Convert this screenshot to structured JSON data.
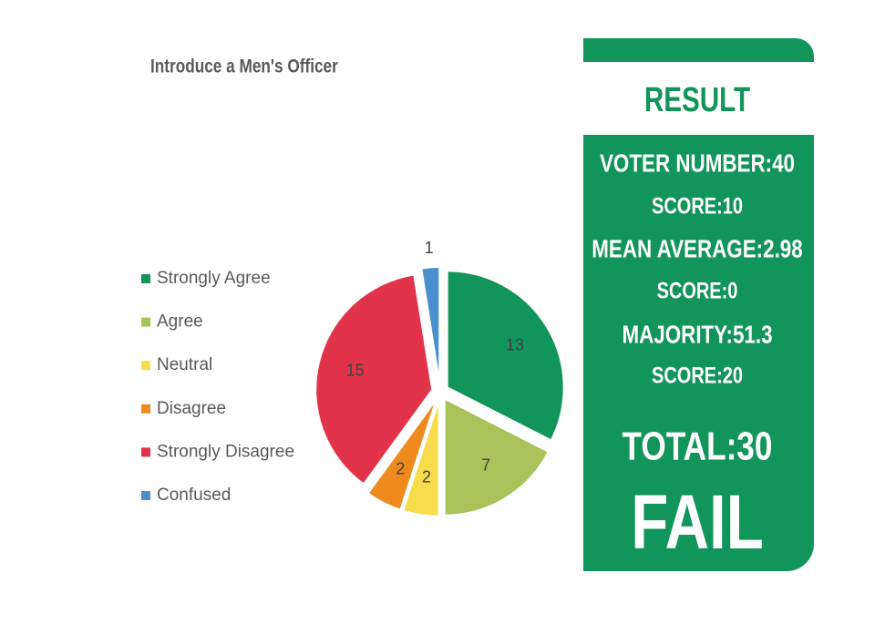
{
  "chart_data": {
    "type": "pie",
    "title": "Introduce a Men's Officer",
    "categories": [
      "Strongly Agree",
      "Agree",
      "Neutral",
      "Disagree",
      "Strongly Disagree",
      "Confused"
    ],
    "values": [
      13,
      7,
      2,
      2,
      15,
      1
    ],
    "colors": [
      "#12955a",
      "#a8c35a",
      "#f7dc4b",
      "#ef8a1f",
      "#e2334a",
      "#4a90cf"
    ],
    "legend": "left"
  },
  "result": {
    "title": "RESULT",
    "lines": [
      "VOTER NUMBER:40",
      "SCORE:10",
      "MEAN AVERAGE:2.98",
      "SCORE:0",
      "MAJORITY:51.3",
      "SCORE:20"
    ],
    "total": "TOTAL:30",
    "verdict": "FAIL"
  }
}
